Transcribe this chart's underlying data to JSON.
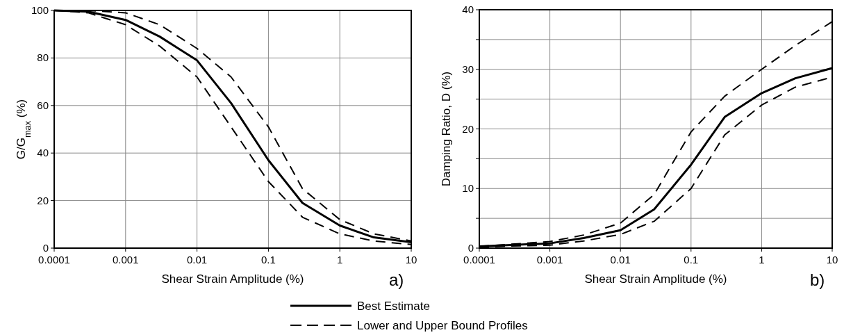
{
  "chart_data": [
    {
      "type": "line",
      "xlabel": "Shear Strain Amplitude (%)",
      "ylabel": "G/G$_{max}$ (%)",
      "annotations": [
        "a)"
      ],
      "log": "x",
      "grid": true,
      "legend": "bottom",
      "xlim": [
        0.0001,
        10
      ],
      "xticks": [
        0.0001,
        0.001,
        0.01,
        0.1,
        1,
        10
      ],
      "ylim": [
        0,
        100
      ],
      "yticks": [
        0,
        20,
        40,
        60,
        80,
        100
      ],
      "x": [
        0.0001,
        0.0003,
        0.001,
        0.003,
        0.01,
        0.03,
        0.1,
        0.3,
        1,
        3,
        10
      ],
      "series": [
        {
          "name": "Best Estimate",
          "color": "#000000",
          "line_style": "solid",
          "values": [
            100,
            99.5,
            96,
            89,
            79,
            61,
            37,
            19,
            9.5,
            4.5,
            2.5
          ]
        },
        {
          "name": "Lower and Upper Bound Profiles",
          "color": "#000000",
          "line_style": "dashed",
          "values": [
            100,
            99,
            94,
            85,
            72,
            51,
            28,
            13,
            6,
            3,
            1.5
          ]
        },
        {
          "color": "#000000",
          "line_style": "dashed",
          "values": [
            100,
            100,
            99,
            94,
            84,
            72,
            51,
            25,
            12,
            6,
            3
          ]
        }
      ]
    },
    {
      "type": "line",
      "xlabel": "Shear Strain Amplitude (%)",
      "ylabel": "Damping Ratio, D (%)",
      "annotations": [
        "b)"
      ],
      "log": "x",
      "grid": true,
      "xlim": [
        0.0001,
        10
      ],
      "xticks": [
        0.0001,
        0.001,
        0.01,
        0.1,
        1,
        10
      ],
      "ylim": [
        0,
        40
      ],
      "yticks": [
        0,
        {
          "value": 5,
          "label": null
        },
        10,
        {
          "value": 15,
          "label": null
        },
        20,
        {
          "value": 25,
          "label": null
        },
        30,
        {
          "value": 35,
          "label": null
        },
        40
      ],
      "x": [
        0.0001,
        0.001,
        0.003,
        0.01,
        0.03,
        0.1,
        0.3,
        1,
        3,
        10
      ],
      "series": [
        {
          "color": "#000000",
          "line_style": "solid",
          "values": [
            0.3,
            0.8,
            1.7,
            3,
            6.5,
            14,
            22,
            26,
            28.5,
            30.2
          ]
        },
        {
          "color": "#000000",
          "line_style": "dashed",
          "values": [
            0.2,
            0.5,
            1.2,
            2.3,
            4.5,
            10,
            19,
            24,
            27,
            28.7
          ]
        },
        {
          "color": "#000000",
          "line_style": "dashed",
          "values": [
            0.3,
            1.1,
            2.2,
            4.2,
            9,
            19.5,
            25.5,
            30,
            34,
            38
          ]
        }
      ]
    }
  ]
}
